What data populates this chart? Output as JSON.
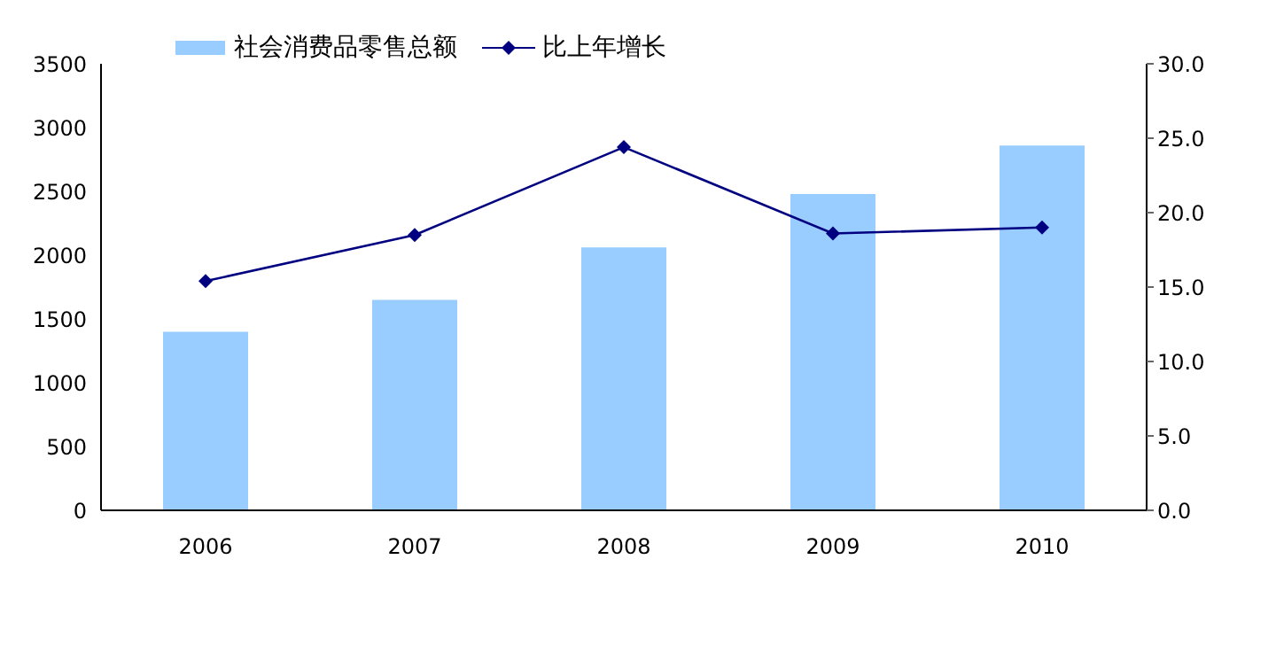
{
  "chart_data": {
    "type": "bar",
    "categories": [
      "2006",
      "2007",
      "2008",
      "2009",
      "2010"
    ],
    "series": [
      {
        "name": "社会消费品零售总额",
        "color": "#99ccff",
        "values": [
          1400,
          1650,
          2060,
          2480,
          2860
        ]
      },
      {
        "name": "比上年增长",
        "type": "line",
        "axis": "y2",
        "color": "#000080",
        "values": [
          15.4,
          18.5,
          24.4,
          18.6,
          19.0
        ]
      }
    ],
    "ylim": [
      0,
      3500
    ],
    "yticks": [
      0,
      500,
      1000,
      1500,
      2000,
      2500,
      3000,
      3500
    ],
    "y2lim": [
      0,
      30
    ],
    "y2ticks": [
      {
        "value": 0,
        "label": "0.0"
      },
      {
        "value": 5,
        "label": "5.0"
      },
      {
        "value": 10,
        "label": "10.0"
      },
      {
        "value": 15,
        "label": "15.0"
      },
      {
        "value": 20,
        "label": "20.0"
      },
      {
        "value": 25,
        "label": "25.0"
      },
      {
        "value": 30,
        "label": "30.0"
      }
    ],
    "grid": false,
    "legend": "top left",
    "marker": "diamond",
    "line_style": "solid"
  }
}
